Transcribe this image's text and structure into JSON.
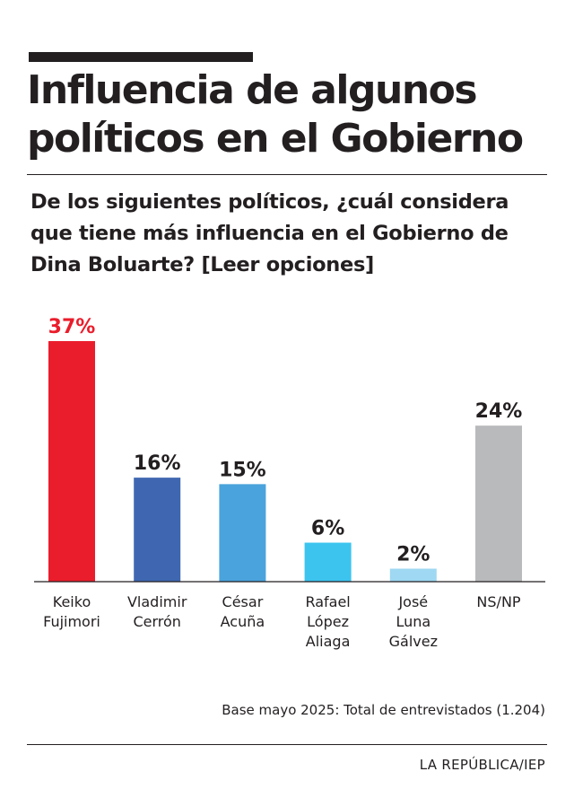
{
  "header": {
    "title": "Influencia de algunos políticos en el Gobierno",
    "subtitle": "De los siguientes políticos, ¿cuál considera que tiene más influencia en el Gobierno de Dina Boluarte? [Leer opciones]"
  },
  "footer": {
    "note": "Base mayo 2025: Total de entrevistados (1.204)",
    "source": "LA REPÚBLICA/IEP"
  },
  "chart_data": {
    "type": "bar",
    "categories": [
      [
        "Keiko",
        "Fujimori"
      ],
      [
        "Vladimir",
        "Cerrón"
      ],
      [
        "César",
        "Acuña"
      ],
      [
        "Rafael",
        "López",
        "Aliaga"
      ],
      [
        "José",
        "Luna",
        "Gálvez"
      ],
      [
        "NS/NP"
      ]
    ],
    "values": [
      37,
      16,
      15,
      6,
      2,
      24
    ],
    "data_labels": [
      "37%",
      "16%",
      "15%",
      "6%",
      "2%",
      "24%"
    ],
    "bar_colors": [
      "#ea1d2c",
      "#3f67b1",
      "#4aa3dc",
      "#3cc4ef",
      "#9ed8f3",
      "#b9babc"
    ],
    "label_colors": [
      "#ea1d2c",
      "#231f20",
      "#231f20",
      "#231f20",
      "#231f20",
      "#231f20"
    ],
    "ylim": [
      0,
      37
    ],
    "grid": false,
    "legend": "none"
  }
}
